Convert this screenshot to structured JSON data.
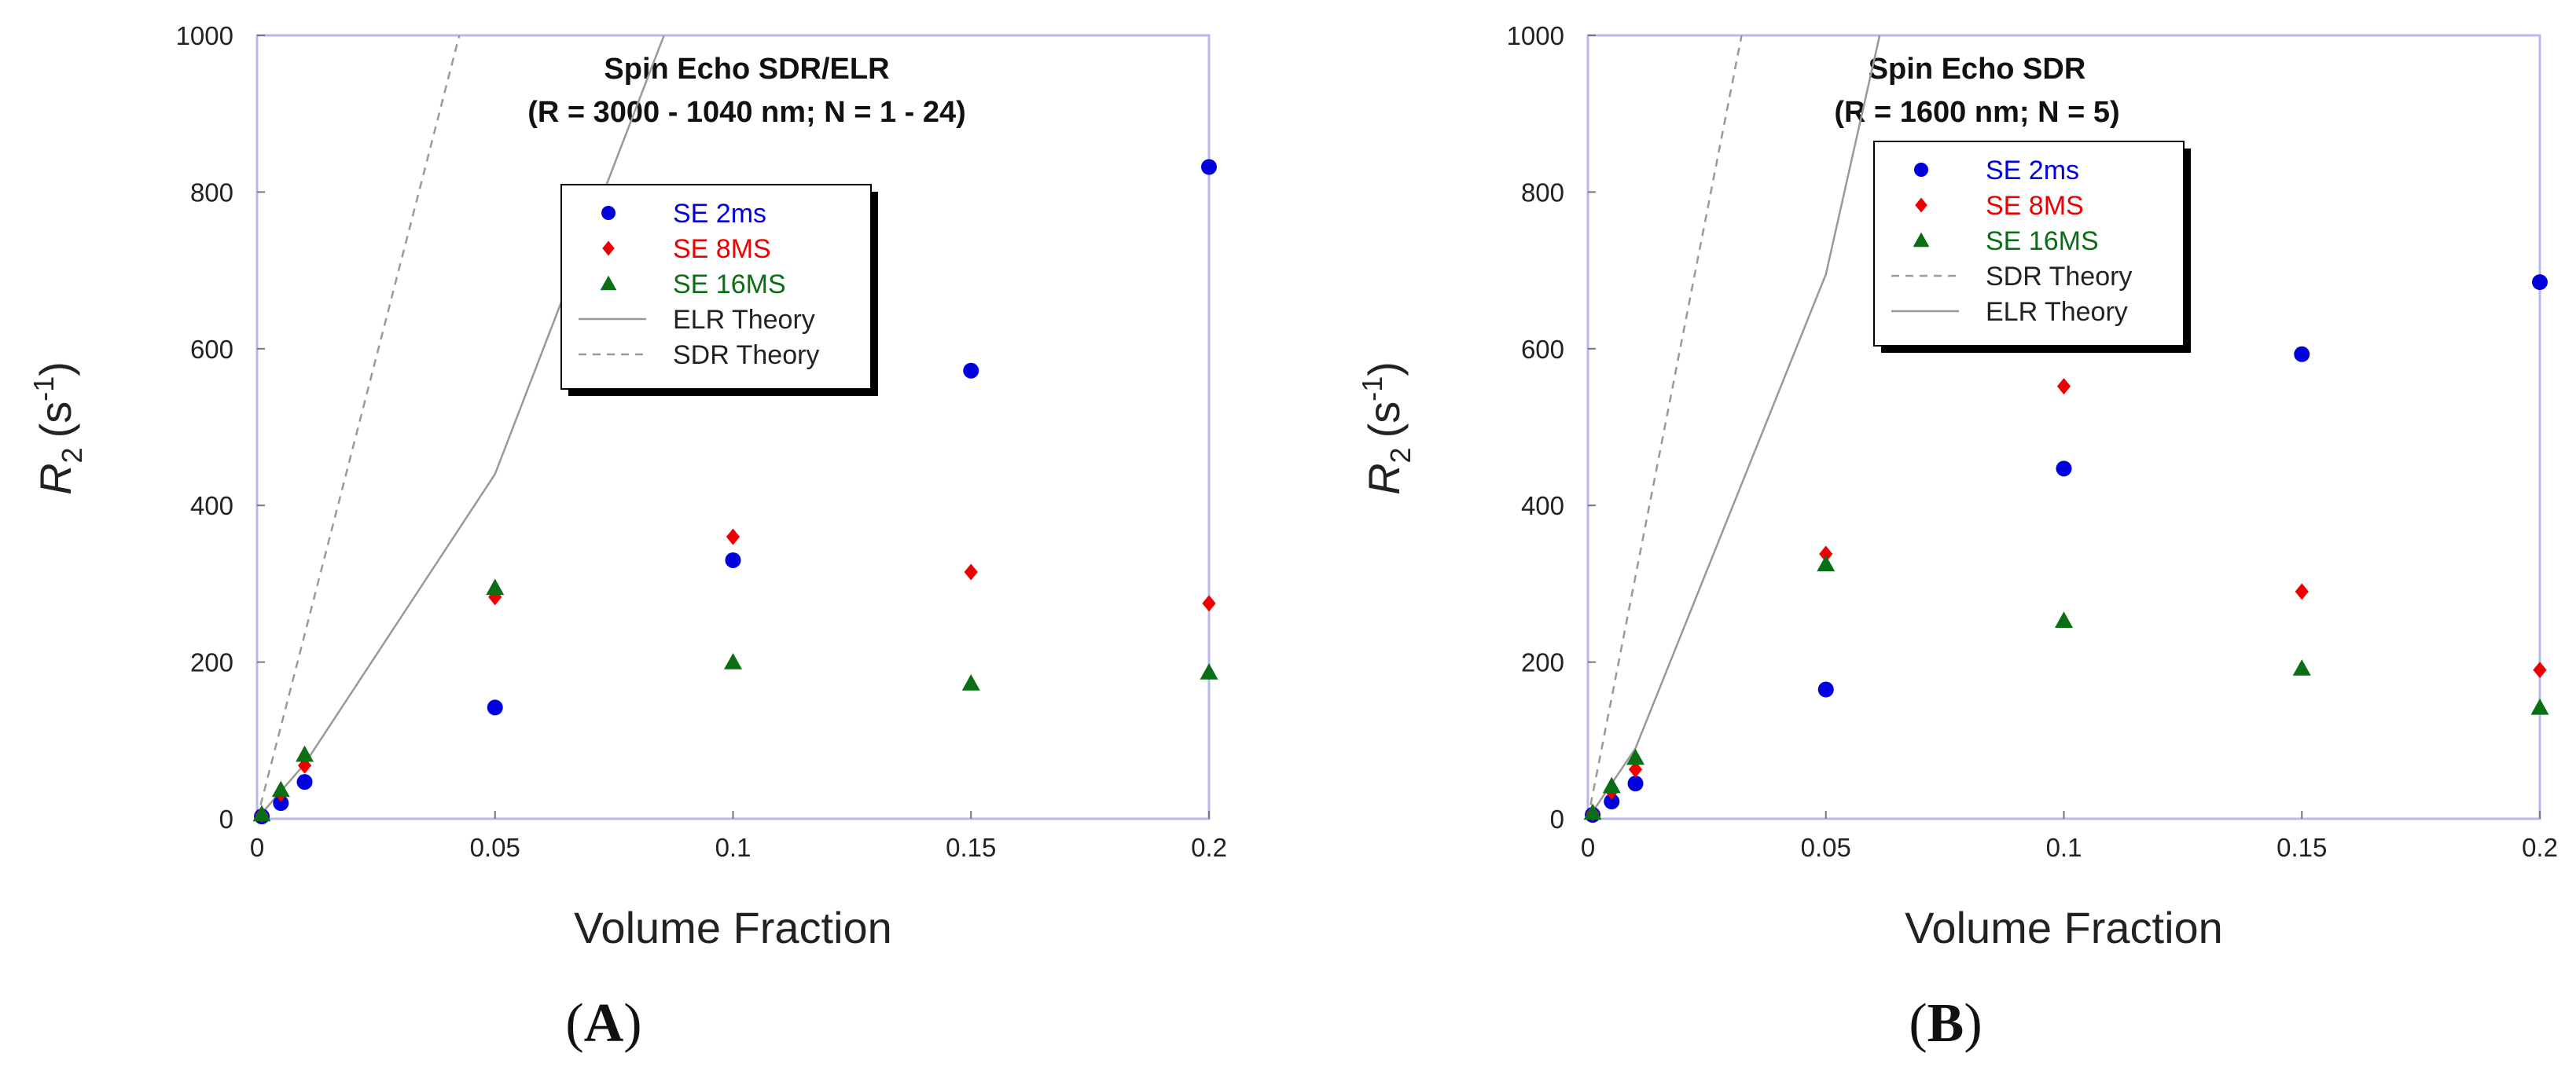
{
  "chart_data": [
    {
      "panel_label_text": "A",
      "type": "scatter",
      "title_lines": [
        "Spin Echo SDR/ELR",
        "(R = 3000 - 1040 nm; N = 1 - 24)"
      ],
      "xlabel": "Volume Fraction",
      "ylabel": "R",
      "ylabel_sub": "2",
      "ylabel_units": "(s",
      "ylabel_exp": "-1",
      "ylabel_close": ")",
      "xlim": [
        0,
        0.2
      ],
      "ylim": [
        0,
        1000
      ],
      "x_ticks": [
        0,
        0.05,
        0.1,
        0.15,
        0.2
      ],
      "x_tick_labels": [
        "0",
        "0.05",
        "0.1",
        "0.15",
        "0.2"
      ],
      "y_ticks": [
        0,
        200,
        400,
        600,
        800,
        1000
      ],
      "y_tick_labels": [
        "0",
        "200",
        "400",
        "600",
        "800",
        "1000"
      ],
      "grid": false,
      "legend_position": "upper-center",
      "series": [
        {
          "name": "SE 2ms",
          "marker": "circle",
          "color": "#0000dd",
          "x": [
            0.001,
            0.005,
            0.01,
            0.05,
            0.1,
            0.15,
            0.2
          ],
          "y": [
            3,
            20,
            47,
            142,
            330,
            572,
            832
          ]
        },
        {
          "name": "SE 8MS",
          "marker": "diamond",
          "color": "#ee0000",
          "x": [
            0.001,
            0.005,
            0.01,
            0.05,
            0.1,
            0.15,
            0.2
          ],
          "y": [
            5,
            32,
            68,
            283,
            360,
            315,
            275
          ]
        },
        {
          "name": "SE 16MS",
          "marker": "triangle",
          "color": "#0a6e14",
          "x": [
            0.001,
            0.005,
            0.01,
            0.05,
            0.1,
            0.15,
            0.2
          ],
          "y": [
            6,
            37,
            82,
            295,
            200,
            173,
            187
          ]
        },
        {
          "name": "ELR Theory",
          "line": "solid",
          "color": "#999999",
          "x": [
            0,
            0.01,
            0.05,
            0.0855
          ],
          "y": [
            0,
            70,
            440,
            1000
          ]
        },
        {
          "name": "SDR Theory",
          "line": "dashed",
          "color": "#999999",
          "x": [
            0,
            0.0425
          ],
          "y": [
            0,
            1000
          ]
        }
      ]
    },
    {
      "panel_label_text": "B",
      "type": "scatter",
      "title_lines": [
        "Spin Echo SDR",
        "(R = 1600 nm; N = 5)"
      ],
      "xlabel": "Volume Fraction",
      "ylabel": "R",
      "ylabel_sub": "2",
      "ylabel_units": "(s",
      "ylabel_exp": "-1",
      "ylabel_close": ")",
      "xlim": [
        0,
        0.2
      ],
      "ylim": [
        0,
        1000
      ],
      "x_ticks": [
        0,
        0.05,
        0.1,
        0.15,
        0.2
      ],
      "x_tick_labels": [
        "0",
        "0.05",
        "0.1",
        "0.15",
        "0.2"
      ],
      "y_ticks": [
        0,
        200,
        400,
        600,
        800,
        1000
      ],
      "y_tick_labels": [
        "0",
        "200",
        "400",
        "600",
        "800",
        "1000"
      ],
      "grid": false,
      "legend_position": "upper-center",
      "series": [
        {
          "name": "SE 2ms",
          "marker": "circle",
          "color": "#0000dd",
          "x": [
            0.001,
            0.005,
            0.01,
            0.05,
            0.1,
            0.15,
            0.2
          ],
          "y": [
            5,
            22,
            45,
            165,
            447,
            593,
            685
          ]
        },
        {
          "name": "SE 8MS",
          "marker": "diamond",
          "color": "#ee0000",
          "x": [
            0.001,
            0.005,
            0.01,
            0.05,
            0.1,
            0.15,
            0.2
          ],
          "y": [
            7,
            35,
            63,
            338,
            552,
            290,
            190
          ]
        },
        {
          "name": "SE 16MS",
          "marker": "triangle",
          "color": "#0a6e14",
          "x": [
            0.001,
            0.005,
            0.01,
            0.05,
            0.1,
            0.15,
            0.2
          ],
          "y": [
            8,
            42,
            78,
            325,
            253,
            192,
            142
          ]
        },
        {
          "name": "SDR Theory",
          "line": "dashed",
          "color": "#999999",
          "x": [
            0,
            0.0323
          ],
          "y": [
            0,
            1000
          ]
        },
        {
          "name": "ELR Theory",
          "line": "solid",
          "color": "#999999",
          "x": [
            0,
            0.01,
            0.05,
            0.0613
          ],
          "y": [
            0,
            90,
            695,
            1000
          ]
        }
      ]
    }
  ]
}
